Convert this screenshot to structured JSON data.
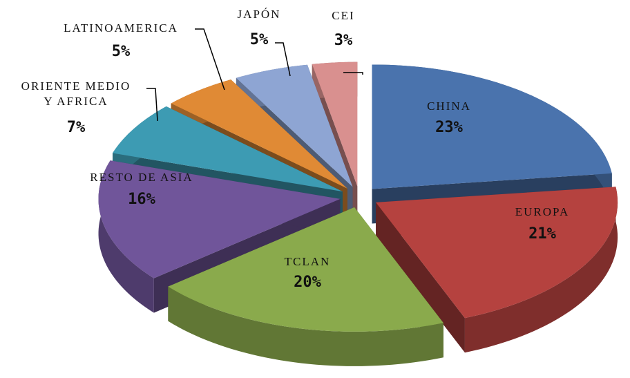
{
  "chart_data": {
    "type": "pie",
    "categories": [
      "CHINA",
      "EUROPA",
      "TCLAN",
      "RESTO DE ASIA",
      "ORIENTE MEDIO\nY AFRICA",
      "LATINOAMERICA",
      "JAPÓN",
      "CEI"
    ],
    "values": [
      23,
      21,
      20,
      16,
      7,
      5,
      5,
      3
    ],
    "value_labels": [
      "23%",
      "21%",
      "20%",
      "16%",
      "7%",
      "5%",
      "5%",
      "3%"
    ],
    "colors": [
      "#4a73ad",
      "#b5423f",
      "#8aaa4c",
      "#70559a",
      "#3d9bb3",
      "#e08a35",
      "#8ea5d3",
      "#d9908f"
    ]
  }
}
